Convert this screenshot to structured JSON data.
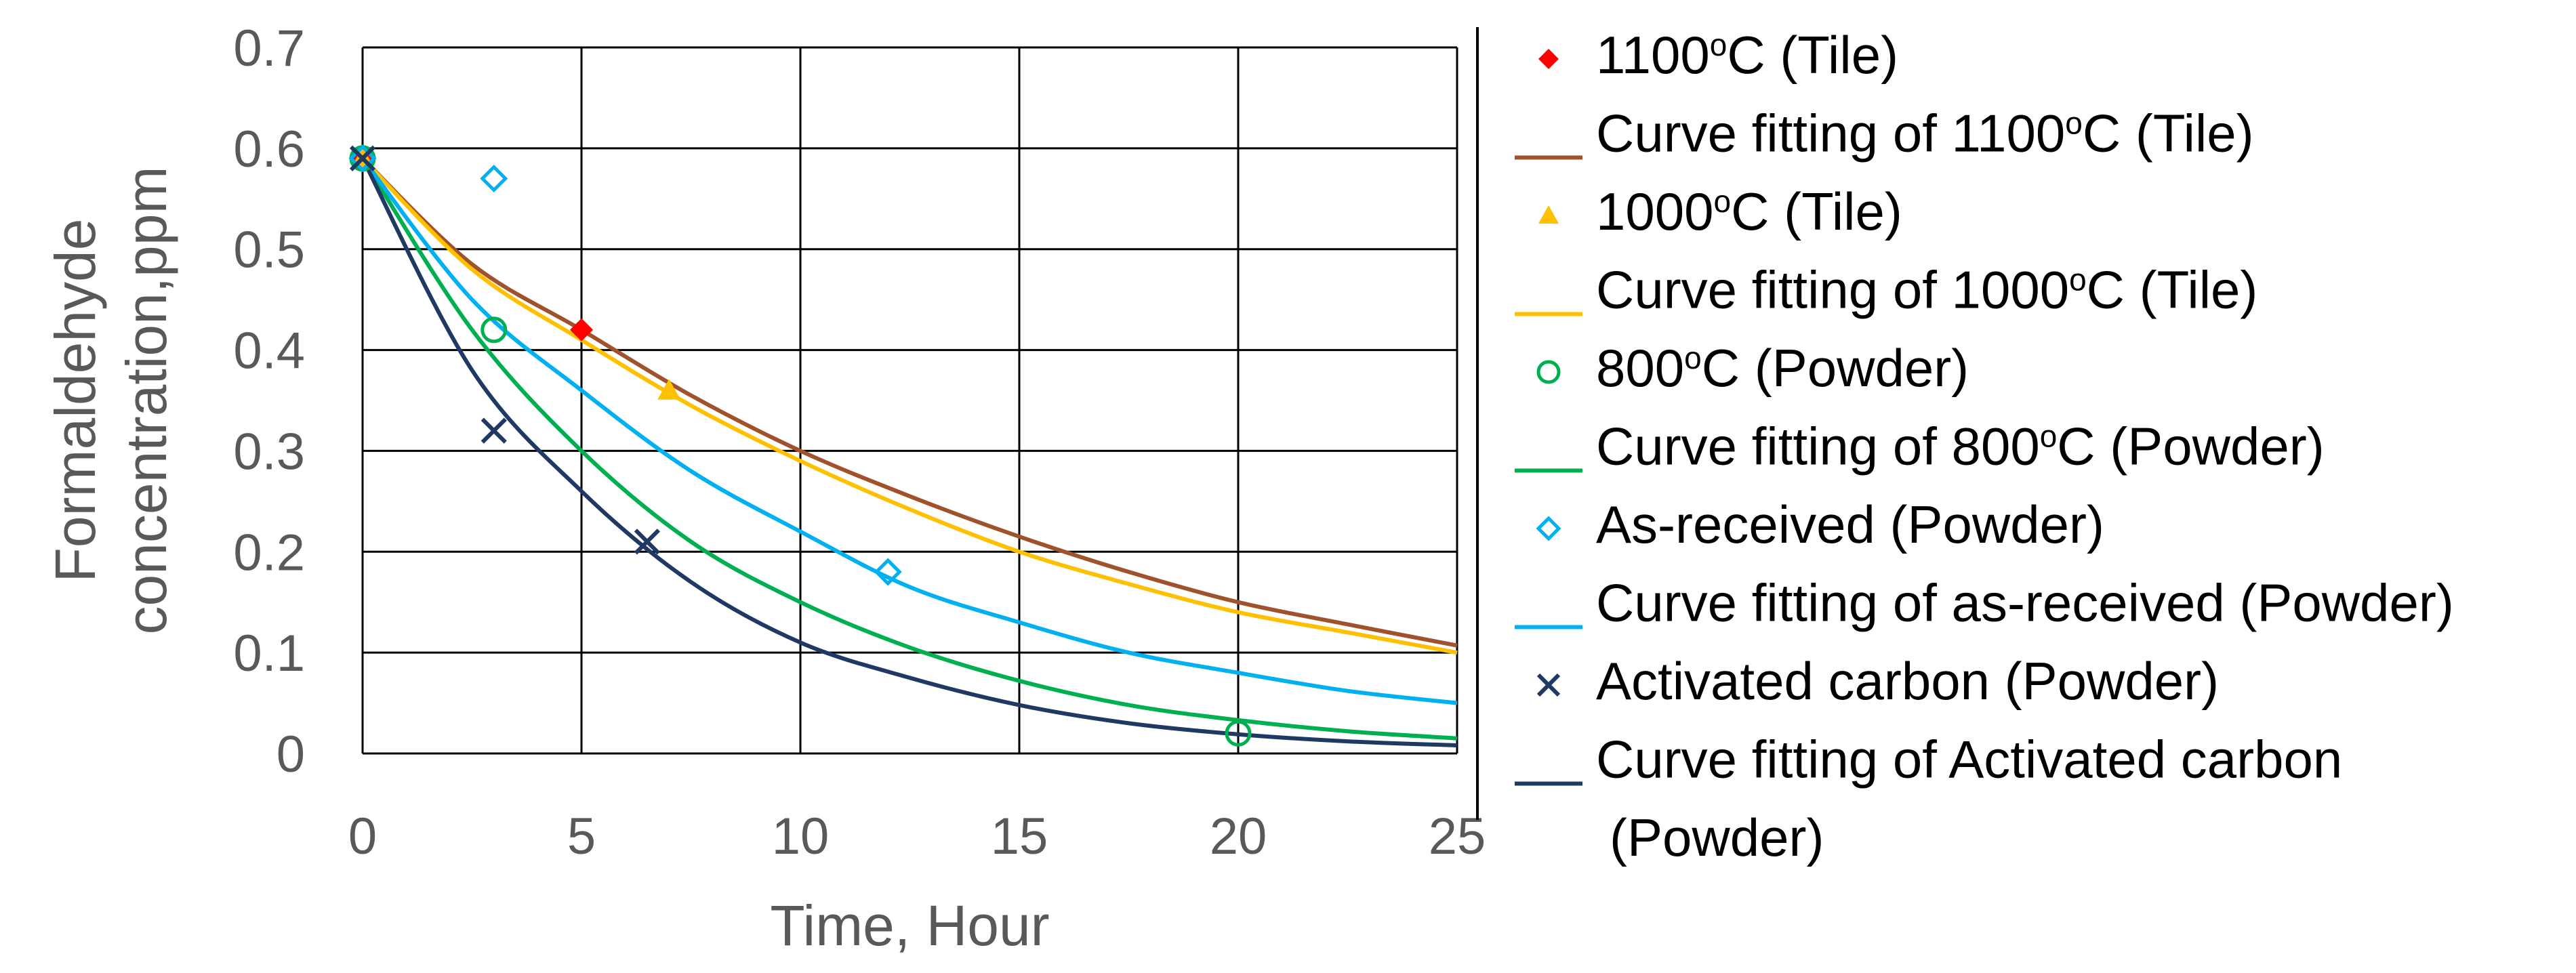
{
  "chart_data": {
    "type": "scatter",
    "xlabel": "Time, Hour",
    "ylabel_line1": "Formaldehyde",
    "ylabel_line2": "concentration,ppm",
    "xlim": [
      0,
      25
    ],
    "ylim": [
      0,
      0.7
    ],
    "x_ticks": [
      "0",
      "5",
      "10",
      "15",
      "20",
      "25"
    ],
    "y_ticks": [
      "0",
      "0.1",
      "0.2",
      "0.3",
      "0.4",
      "0.5",
      "0.6",
      "0.7"
    ],
    "grid": true,
    "legend_position": "right",
    "series": [
      {
        "name": "1100°C (Tile)",
        "kind": "markers",
        "marker": "diamond-filled",
        "color": "#ff0000",
        "points": [
          [
            0,
            0.59
          ],
          [
            5,
            0.42
          ]
        ]
      },
      {
        "name": "Curve fitting of 1100°C (Tile)",
        "kind": "line",
        "color": "#a0522d",
        "points": [
          [
            0,
            0.59
          ],
          [
            2.5,
            0.485
          ],
          [
            5,
            0.42
          ],
          [
            7.5,
            0.355
          ],
          [
            10,
            0.3
          ],
          [
            12.5,
            0.255
          ],
          [
            15,
            0.215
          ],
          [
            17.5,
            0.18
          ],
          [
            20,
            0.15
          ],
          [
            22.5,
            0.128
          ],
          [
            25,
            0.107
          ]
        ]
      },
      {
        "name": "1000°C (Tile)",
        "kind": "markers",
        "marker": "triangle-filled",
        "color": "#ffc000",
        "points": [
          [
            0,
            0.59
          ],
          [
            7,
            0.36
          ]
        ]
      },
      {
        "name": "Curve fitting of 1000°C (Tile)",
        "kind": "line",
        "color": "#ffc000",
        "points": [
          [
            0,
            0.59
          ],
          [
            2.5,
            0.48
          ],
          [
            5,
            0.41
          ],
          [
            7.5,
            0.345
          ],
          [
            10,
            0.29
          ],
          [
            12.5,
            0.242
          ],
          [
            15,
            0.2
          ],
          [
            17.5,
            0.168
          ],
          [
            20,
            0.14
          ],
          [
            22.5,
            0.12
          ],
          [
            25,
            0.1
          ]
        ]
      },
      {
        "name": "800°C (Powder)",
        "kind": "markers",
        "marker": "circle-open",
        "color": "#00b050",
        "points": [
          [
            0,
            0.59
          ],
          [
            3,
            0.42
          ],
          [
            20,
            0.02
          ]
        ]
      },
      {
        "name": "Curve fitting of 800°C (Powder)",
        "kind": "line",
        "color": "#00b050",
        "points": [
          [
            0,
            0.59
          ],
          [
            2.5,
            0.42
          ],
          [
            5,
            0.3
          ],
          [
            7.5,
            0.21
          ],
          [
            10,
            0.15
          ],
          [
            12.5,
            0.105
          ],
          [
            15,
            0.072
          ],
          [
            17.5,
            0.048
          ],
          [
            20,
            0.033
          ],
          [
            22.5,
            0.022
          ],
          [
            25,
            0.015
          ]
        ]
      },
      {
        "name": "As-received (Powder)",
        "kind": "markers",
        "marker": "diamond-open",
        "color": "#00b0f0",
        "points": [
          [
            0,
            0.59
          ],
          [
            3,
            0.57
          ],
          [
            12,
            0.18
          ]
        ]
      },
      {
        "name": "Curve fitting of as-received (Powder)",
        "kind": "line",
        "color": "#00b0f0",
        "points": [
          [
            0,
            0.59
          ],
          [
            2.5,
            0.45
          ],
          [
            5,
            0.36
          ],
          [
            7.5,
            0.28
          ],
          [
            10,
            0.22
          ],
          [
            12.5,
            0.165
          ],
          [
            15,
            0.13
          ],
          [
            17.5,
            0.1
          ],
          [
            20,
            0.08
          ],
          [
            22.5,
            0.062
          ],
          [
            25,
            0.05
          ]
        ]
      },
      {
        "name": "Activated carbon (Powder)",
        "kind": "markers",
        "marker": "x",
        "color": "#1f3864",
        "points": [
          [
            0,
            0.59
          ],
          [
            3,
            0.32
          ],
          [
            6.5,
            0.21
          ]
        ]
      },
      {
        "name": "Curve fitting of Activated carbon (Powder)",
        "kind": "line",
        "color": "#1f3864",
        "points": [
          [
            0,
            0.59
          ],
          [
            2.5,
            0.38
          ],
          [
            5,
            0.26
          ],
          [
            7.5,
            0.17
          ],
          [
            10,
            0.11
          ],
          [
            12.5,
            0.075
          ],
          [
            15,
            0.048
          ],
          [
            17.5,
            0.03
          ],
          [
            20,
            0.019
          ],
          [
            22.5,
            0.012
          ],
          [
            25,
            0.008
          ]
        ]
      }
    ],
    "legend": [
      {
        "kind": "marker",
        "series": 0,
        "prefix": "1100",
        "sup": "o",
        "suffix": "C (Tile)"
      },
      {
        "kind": "line",
        "series": 1,
        "prefix": "Curve fitting of 1100",
        "sup": "o",
        "suffix": "C (Tile)"
      },
      {
        "kind": "marker",
        "series": 2,
        "prefix": "1000",
        "sup": "o",
        "suffix": "C (Tile)"
      },
      {
        "kind": "line",
        "series": 3,
        "prefix": "Curve fitting of 1000",
        "sup": "o",
        "suffix": "C (Tile)"
      },
      {
        "kind": "marker",
        "series": 4,
        "prefix": "800",
        "sup": "o",
        "suffix": "C (Powder)"
      },
      {
        "kind": "line",
        "series": 5,
        "prefix": "Curve fitting of 800",
        "sup": "o",
        "suffix": "C (Powder)"
      },
      {
        "kind": "marker",
        "series": 6,
        "prefix": "As-received (Powder)",
        "sup": "",
        "suffix": ""
      },
      {
        "kind": "line",
        "series": 7,
        "prefix": "Curve fitting of as-received (Powder)",
        "sup": "",
        "suffix": ""
      },
      {
        "kind": "marker",
        "series": 8,
        "prefix": "Activated carbon (Powder)",
        "sup": "",
        "suffix": ""
      },
      {
        "kind": "line",
        "series": 9,
        "prefix": "Curve fitting of Activated carbon",
        "sup": "",
        "suffix": "",
        "line2": "(Powder)"
      }
    ]
  }
}
